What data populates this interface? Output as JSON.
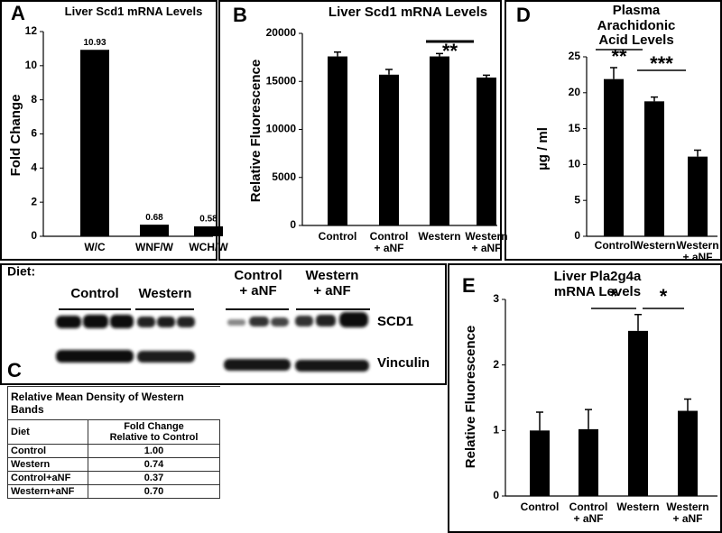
{
  "chart_data": [
    {
      "panel": "A",
      "type": "bar",
      "title": "Liver Scd1 mRNA Levels",
      "ylabel": "Fold Change",
      "categories": [
        "W/C",
        "WNF/W",
        "WCH/W"
      ],
      "values": [
        10.93,
        0.68,
        0.58
      ],
      "data_labels": true,
      "color": "#000000",
      "ylim": [
        0,
        12
      ],
      "yticks": [
        0,
        2,
        4,
        6,
        8,
        10,
        12
      ]
    },
    {
      "panel": "B",
      "type": "bar",
      "title": "Liver Scd1 mRNA Levels",
      "ylabel": "Relative Fluorescence",
      "categories": [
        "Control",
        "Control\n+ aNF",
        "Western",
        "Western\n+ aNF"
      ],
      "values": [
        17600,
        15700,
        17600,
        15400
      ],
      "errors": [
        450,
        550,
        300,
        250
      ],
      "color": "#000000",
      "ylim": [
        0,
        20000
      ],
      "yticks": [
        0,
        5000,
        10000,
        15000,
        20000
      ],
      "annotations": [
        {
          "text": "**",
          "span": [
            2,
            3
          ]
        }
      ]
    },
    {
      "panel": "D",
      "type": "bar",
      "title": "Plasma Arachidonic\nAcid Levels",
      "ylabel": "µg / ml",
      "categories": [
        "Control",
        "Western",
        "Western\n+ aNF"
      ],
      "values": [
        21.9,
        18.8,
        11.1
      ],
      "errors": [
        1.6,
        0.6,
        0.9
      ],
      "color": "#000000",
      "ylim": [
        0,
        25
      ],
      "yticks": [
        0,
        5,
        10,
        15,
        20,
        25
      ],
      "annotations": [
        {
          "text": "**",
          "span": [
            0,
            1
          ]
        },
        {
          "text": "***",
          "span": [
            1,
            2
          ]
        }
      ]
    },
    {
      "panel": "E",
      "type": "bar",
      "title": "Liver Pla2g4a mRNA Levels",
      "ylabel": "Relative Fluorescence",
      "categories": [
        "Control",
        "Control\n+ aNF",
        "Western",
        "Western\n+ aNF"
      ],
      "values": [
        1.0,
        1.02,
        2.52,
        1.3
      ],
      "errors": [
        0.28,
        0.3,
        0.25,
        0.18
      ],
      "color": "#000000",
      "ylim": [
        0,
        3
      ],
      "yticks": [
        0,
        1,
        2,
        3
      ],
      "annotations": [
        {
          "text": "*",
          "span": [
            1,
            2
          ]
        },
        {
          "text": "*",
          "span": [
            2,
            3
          ]
        }
      ]
    }
  ],
  "panel_c": {
    "label": "C",
    "diet_label": "Diet:",
    "groups": [
      "Control",
      "Western",
      "Control\n+ aNF",
      "Western\n+ aNF"
    ],
    "bands": [
      "SCD1",
      "Vinculin"
    ],
    "table": {
      "title": "Relative Mean Density of Western Bands",
      "header": [
        "Diet",
        "Fold Change\nRelative to Control"
      ],
      "rows": [
        [
          "Control",
          "1.00"
        ],
        [
          "Western",
          "0.74"
        ],
        [
          "Control+aNF",
          "0.37"
        ],
        [
          "Western+aNF",
          "0.70"
        ]
      ]
    }
  }
}
